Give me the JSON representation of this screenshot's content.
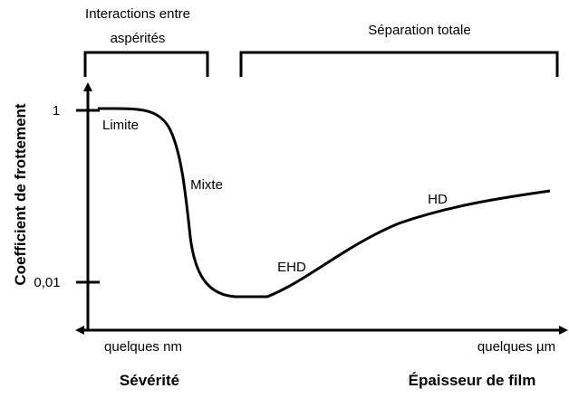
{
  "regimes": {
    "left": {
      "label": "Interactions  entre",
      "label_line2": "aspérités"
    },
    "right": {
      "label": "Séparation totale"
    }
  },
  "y_axis": {
    "label": "Coefficient de frottement",
    "ticks": [
      "1",
      "0,01"
    ]
  },
  "x_axis": {
    "left_end": "quelques nm",
    "right_end": "quelques µm",
    "left_caption": "Sévérité",
    "right_caption": "Épaisseur de film"
  },
  "curve_labels": [
    "Limite",
    "Mixte",
    "EHD",
    "HD"
  ]
}
